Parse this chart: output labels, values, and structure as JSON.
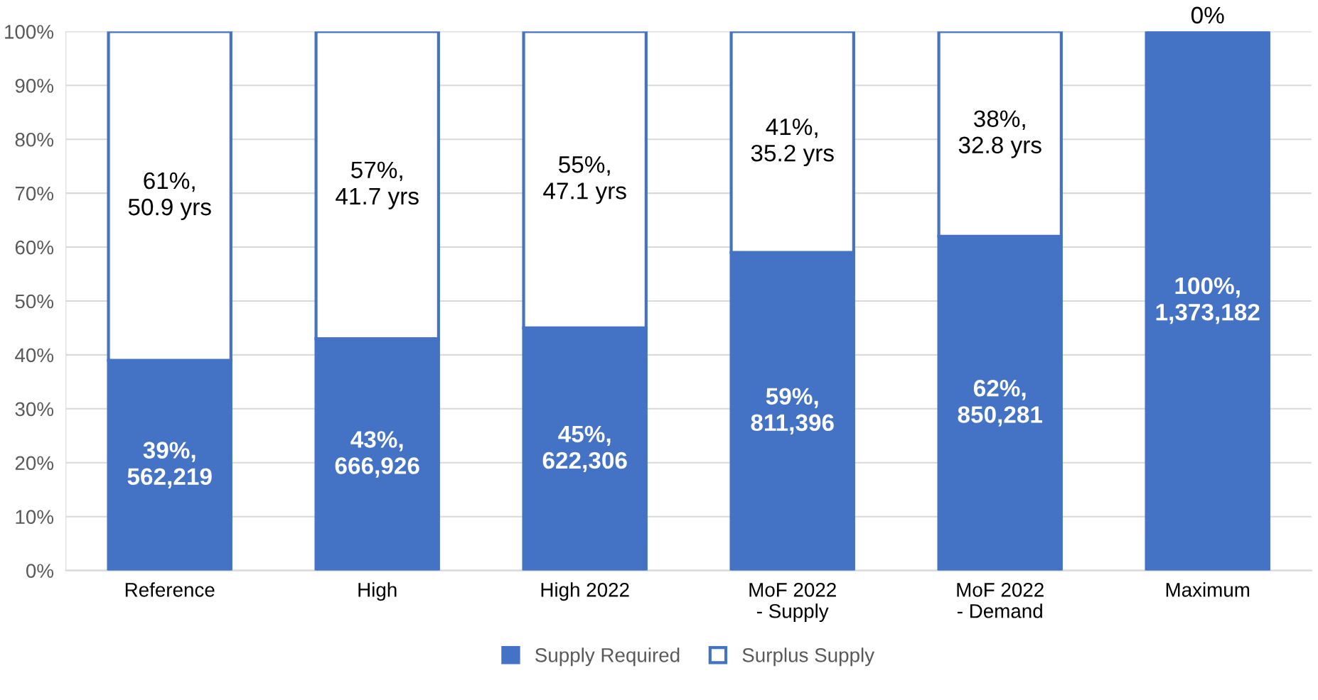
{
  "chart_data": {
    "type": "bar",
    "stacked": true,
    "categories": [
      "Reference",
      "High",
      "High 2022",
      "MoF 2022\n- Supply",
      "MoF 2022\n- Demand",
      "Maximum"
    ],
    "series": [
      {
        "name": "Supply Required",
        "color": "#4472c4",
        "values": [
          39,
          43,
          45,
          59,
          62,
          100
        ],
        "value_labels": [
          "39%,\n562,219",
          "43%,\n666,926",
          "45%,\n622,306",
          "59%,\n811,396",
          "62%,\n850,281",
          "100%,\n1,373,182"
        ]
      },
      {
        "name": "Surplus Supply",
        "color": "#ffffff",
        "values": [
          61,
          57,
          55,
          41,
          38,
          0
        ],
        "value_labels": [
          "61%,\n50.9 yrs",
          "57%,\n41.7 yrs",
          "55%,\n47.1 yrs",
          "41%,\n35.2 yrs",
          "38%,\n32.8 yrs",
          "0%"
        ]
      }
    ],
    "ylim": [
      0,
      100
    ],
    "yticks": [
      {
        "value": 0,
        "label": "0%"
      },
      {
        "value": 10,
        "label": "10%"
      },
      {
        "value": 20,
        "label": "20%"
      },
      {
        "value": 30,
        "label": "30%"
      },
      {
        "value": 40,
        "label": "40%"
      },
      {
        "value": 50,
        "label": "50%"
      },
      {
        "value": 60,
        "label": "60%"
      },
      {
        "value": 70,
        "label": "70%"
      },
      {
        "value": 80,
        "label": "80%"
      },
      {
        "value": 90,
        "label": "90%"
      },
      {
        "value": 100,
        "label": "100%"
      }
    ],
    "grid": "y",
    "legend": "bottom"
  }
}
